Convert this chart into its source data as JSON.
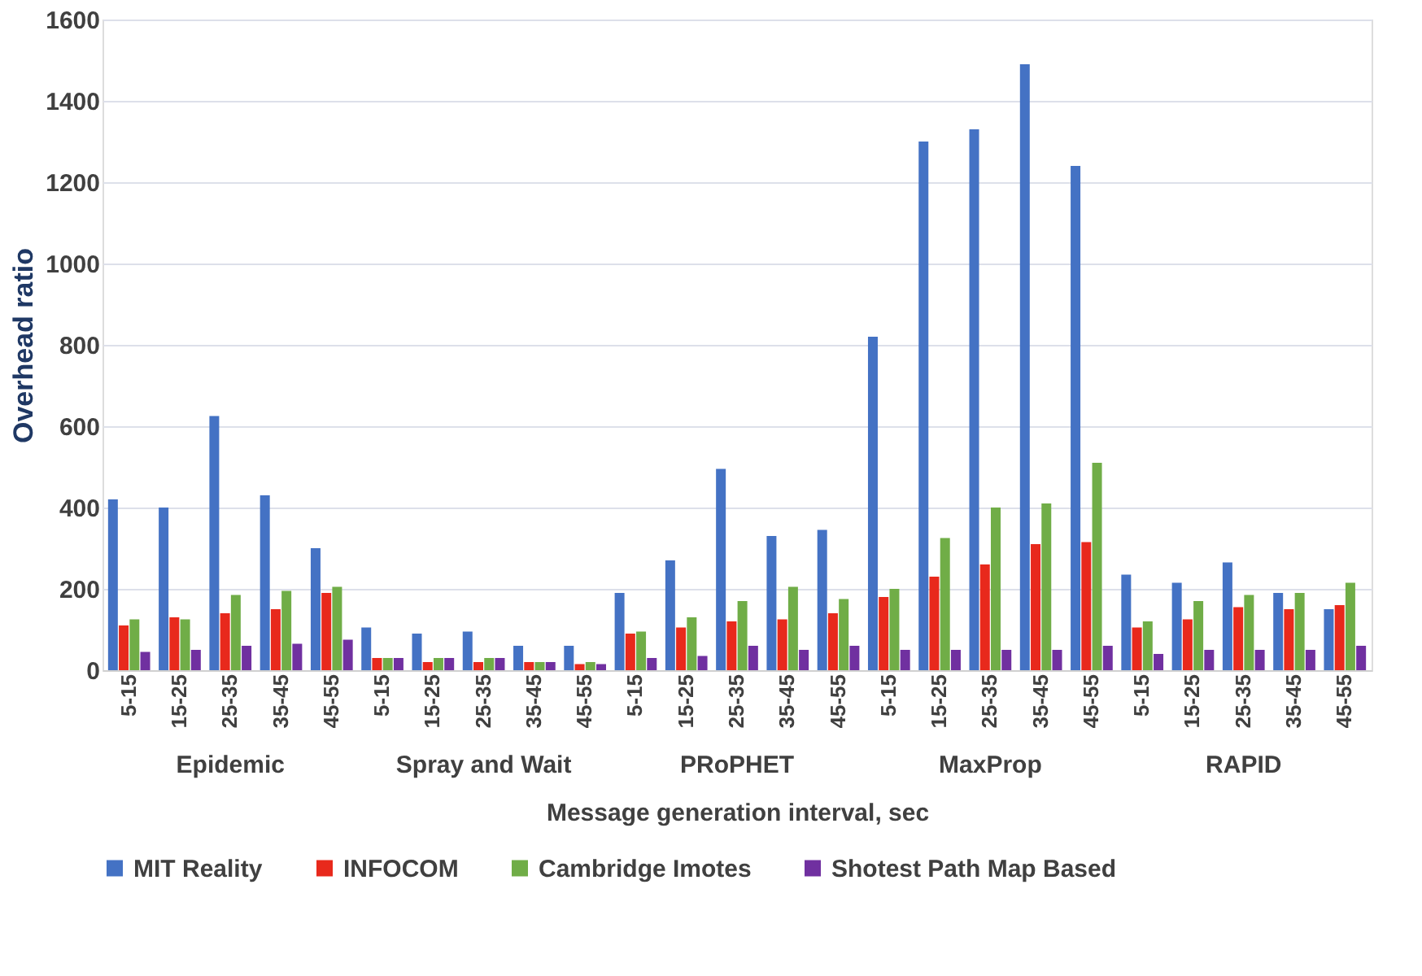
{
  "chart_data": {
    "type": "bar",
    "xlabel": "Message generation  interval, sec",
    "ylabel": "Overhead ratio",
    "categories": [
      "5-15",
      "15-25",
      "25-35",
      "35-45",
      "45-55",
      "5-15",
      "15-25",
      "25-35",
      "35-45",
      "45-55",
      "5-15",
      "15-25",
      "25-35",
      "35-45",
      "45-55",
      "5-15",
      "15-25",
      "25-35",
      "35-45",
      "45-55",
      "5-15",
      "15-25",
      "25-35",
      "35-45",
      "45-55"
    ],
    "series": [
      {
        "name": "MIT Reality",
        "color": "#4472c4",
        "values": [
          420,
          400,
          625,
          430,
          300,
          105,
          90,
          95,
          60,
          60,
          190,
          270,
          495,
          330,
          345,
          820,
          1300,
          1330,
          1490,
          1240,
          235,
          215,
          265,
          190,
          150
        ]
      },
      {
        "name": "INFOCOM",
        "color": "#e8291c",
        "values": [
          110,
          130,
          140,
          150,
          190,
          30,
          20,
          20,
          20,
          15,
          90,
          105,
          120,
          125,
          140,
          180,
          230,
          260,
          310,
          315,
          105,
          125,
          155,
          150,
          160
        ]
      },
      {
        "name": "Cambridge Imotes",
        "color": "#70ad47",
        "values": [
          125,
          125,
          185,
          195,
          205,
          30,
          30,
          30,
          20,
          20,
          95,
          130,
          170,
          205,
          175,
          200,
          325,
          400,
          410,
          510,
          120,
          170,
          185,
          190,
          215
        ]
      },
      {
        "name": "Shotest Path Map Based",
        "color": "#7030a0",
        "values": [
          45,
          50,
          60,
          65,
          75,
          30,
          30,
          30,
          20,
          15,
          30,
          35,
          60,
          50,
          60,
          50,
          50,
          50,
          50,
          60,
          40,
          50,
          50,
          50,
          60
        ]
      }
    ],
    "annotations": [
      "Epidemic",
      "Spray and Wait",
      "PRoPHET",
      "MaxProp",
      "RAPID"
    ],
    "ylim": [
      0,
      1600
    ],
    "yticks": [
      0,
      200,
      400,
      600,
      800,
      1000,
      1200,
      1400,
      1600
    ],
    "grid": "y",
    "legend": "bottom"
  }
}
